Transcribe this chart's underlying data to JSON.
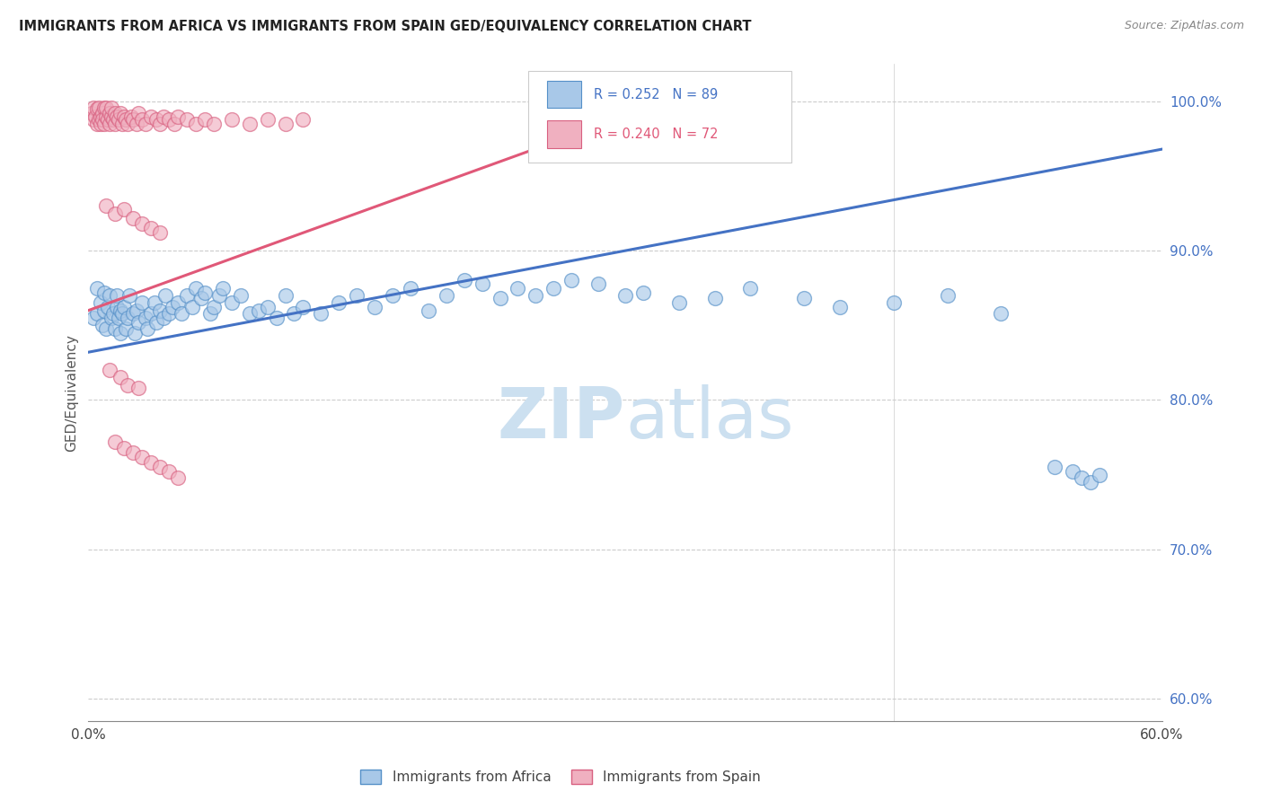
{
  "title": "IMMIGRANTS FROM AFRICA VS IMMIGRANTS FROM SPAIN GED/EQUIVALENCY CORRELATION CHART",
  "source": "Source: ZipAtlas.com",
  "ylabel": "GED/Equivalency",
  "xmin": 0.0,
  "xmax": 0.6,
  "ymin": 0.585,
  "ymax": 1.025,
  "legend1_label": "Immigrants from Africa",
  "legend2_label": "Immigrants from Spain",
  "R1": "0.252",
  "N1": "89",
  "R2": "0.240",
  "N2": "72",
  "blue_fill": "#a8c8e8",
  "blue_edge": "#5590c8",
  "pink_fill": "#f0b0c0",
  "pink_edge": "#d86080",
  "blue_line": "#4472c4",
  "pink_line": "#e05878",
  "right_tick_color": "#4472c4",
  "watermark_color": "#cce0f0",
  "africa_x": [
    0.003,
    0.005,
    0.005,
    0.007,
    0.008,
    0.009,
    0.009,
    0.01,
    0.011,
    0.012,
    0.013,
    0.014,
    0.015,
    0.016,
    0.016,
    0.017,
    0.018,
    0.018,
    0.019,
    0.02,
    0.021,
    0.022,
    0.023,
    0.025,
    0.026,
    0.027,
    0.028,
    0.03,
    0.032,
    0.033,
    0.035,
    0.037,
    0.038,
    0.04,
    0.042,
    0.043,
    0.045,
    0.047,
    0.05,
    0.052,
    0.055,
    0.058,
    0.06,
    0.063,
    0.065,
    0.068,
    0.07,
    0.073,
    0.075,
    0.08,
    0.085,
    0.09,
    0.095,
    0.1,
    0.105,
    0.11,
    0.115,
    0.12,
    0.13,
    0.14,
    0.15,
    0.16,
    0.17,
    0.18,
    0.19,
    0.2,
    0.21,
    0.22,
    0.23,
    0.24,
    0.25,
    0.26,
    0.27,
    0.285,
    0.3,
    0.31,
    0.33,
    0.35,
    0.37,
    0.4,
    0.42,
    0.45,
    0.48,
    0.51,
    0.54,
    0.55,
    0.555,
    0.56,
    0.565
  ],
  "africa_y": [
    0.855,
    0.858,
    0.875,
    0.865,
    0.85,
    0.86,
    0.872,
    0.848,
    0.862,
    0.87,
    0.855,
    0.858,
    0.848,
    0.862,
    0.87,
    0.855,
    0.86,
    0.845,
    0.858,
    0.862,
    0.848,
    0.855,
    0.87,
    0.858,
    0.845,
    0.86,
    0.852,
    0.865,
    0.855,
    0.848,
    0.858,
    0.865,
    0.852,
    0.86,
    0.855,
    0.87,
    0.858,
    0.862,
    0.865,
    0.858,
    0.87,
    0.862,
    0.875,
    0.868,
    0.872,
    0.858,
    0.862,
    0.87,
    0.875,
    0.865,
    0.87,
    0.858,
    0.86,
    0.862,
    0.855,
    0.87,
    0.858,
    0.862,
    0.858,
    0.865,
    0.87,
    0.862,
    0.87,
    0.875,
    0.86,
    0.87,
    0.88,
    0.878,
    0.868,
    0.875,
    0.87,
    0.875,
    0.88,
    0.878,
    0.87,
    0.872,
    0.865,
    0.868,
    0.875,
    0.868,
    0.862,
    0.865,
    0.87,
    0.858,
    0.755,
    0.752,
    0.748,
    0.745,
    0.75
  ],
  "spain_x": [
    0.002,
    0.003,
    0.003,
    0.004,
    0.005,
    0.005,
    0.006,
    0.006,
    0.007,
    0.007,
    0.008,
    0.008,
    0.009,
    0.009,
    0.01,
    0.01,
    0.011,
    0.012,
    0.012,
    0.013,
    0.013,
    0.014,
    0.015,
    0.015,
    0.016,
    0.017,
    0.018,
    0.019,
    0.02,
    0.021,
    0.022,
    0.024,
    0.025,
    0.027,
    0.028,
    0.03,
    0.032,
    0.035,
    0.038,
    0.04,
    0.042,
    0.045,
    0.048,
    0.05,
    0.055,
    0.06,
    0.065,
    0.07,
    0.08,
    0.09,
    0.1,
    0.11,
    0.12,
    0.01,
    0.015,
    0.02,
    0.025,
    0.03,
    0.035,
    0.04,
    0.012,
    0.018,
    0.022,
    0.028,
    0.015,
    0.02,
    0.025,
    0.03,
    0.035,
    0.04,
    0.045,
    0.05
  ],
  "spain_y": [
    0.992,
    0.988,
    0.996,
    0.99,
    0.985,
    0.995,
    0.988,
    0.996,
    0.99,
    0.985,
    0.992,
    0.988,
    0.996,
    0.985,
    0.99,
    0.996,
    0.988,
    0.992,
    0.985,
    0.99,
    0.996,
    0.988,
    0.992,
    0.985,
    0.99,
    0.988,
    0.992,
    0.985,
    0.99,
    0.988,
    0.985,
    0.99,
    0.988,
    0.985,
    0.992,
    0.988,
    0.985,
    0.99,
    0.988,
    0.985,
    0.99,
    0.988,
    0.985,
    0.99,
    0.988,
    0.985,
    0.988,
    0.985,
    0.988,
    0.985,
    0.988,
    0.985,
    0.988,
    0.93,
    0.925,
    0.928,
    0.922,
    0.918,
    0.915,
    0.912,
    0.82,
    0.815,
    0.81,
    0.808,
    0.772,
    0.768,
    0.765,
    0.762,
    0.758,
    0.755,
    0.752,
    0.748
  ],
  "blue_trend_x0": 0.0,
  "blue_trend_y0": 0.832,
  "blue_trend_x1": 0.6,
  "blue_trend_y1": 0.968,
  "pink_trend_x0": 0.0,
  "pink_trend_y0": 0.86,
  "pink_trend_x1": 0.3,
  "pink_trend_y1": 0.99,
  "yticks": [
    0.6,
    0.7,
    0.8,
    0.9,
    1.0
  ],
  "ytick_labels": [
    "60.0%",
    "70.0%",
    "80.0%",
    "90.0%",
    "100.0%"
  ],
  "xtick_vals": [
    0.0,
    0.1,
    0.2,
    0.3,
    0.4,
    0.5,
    0.6
  ],
  "xtick_labels": [
    "0.0%",
    "",
    "",
    "",
    "",
    "",
    "60.0%"
  ]
}
